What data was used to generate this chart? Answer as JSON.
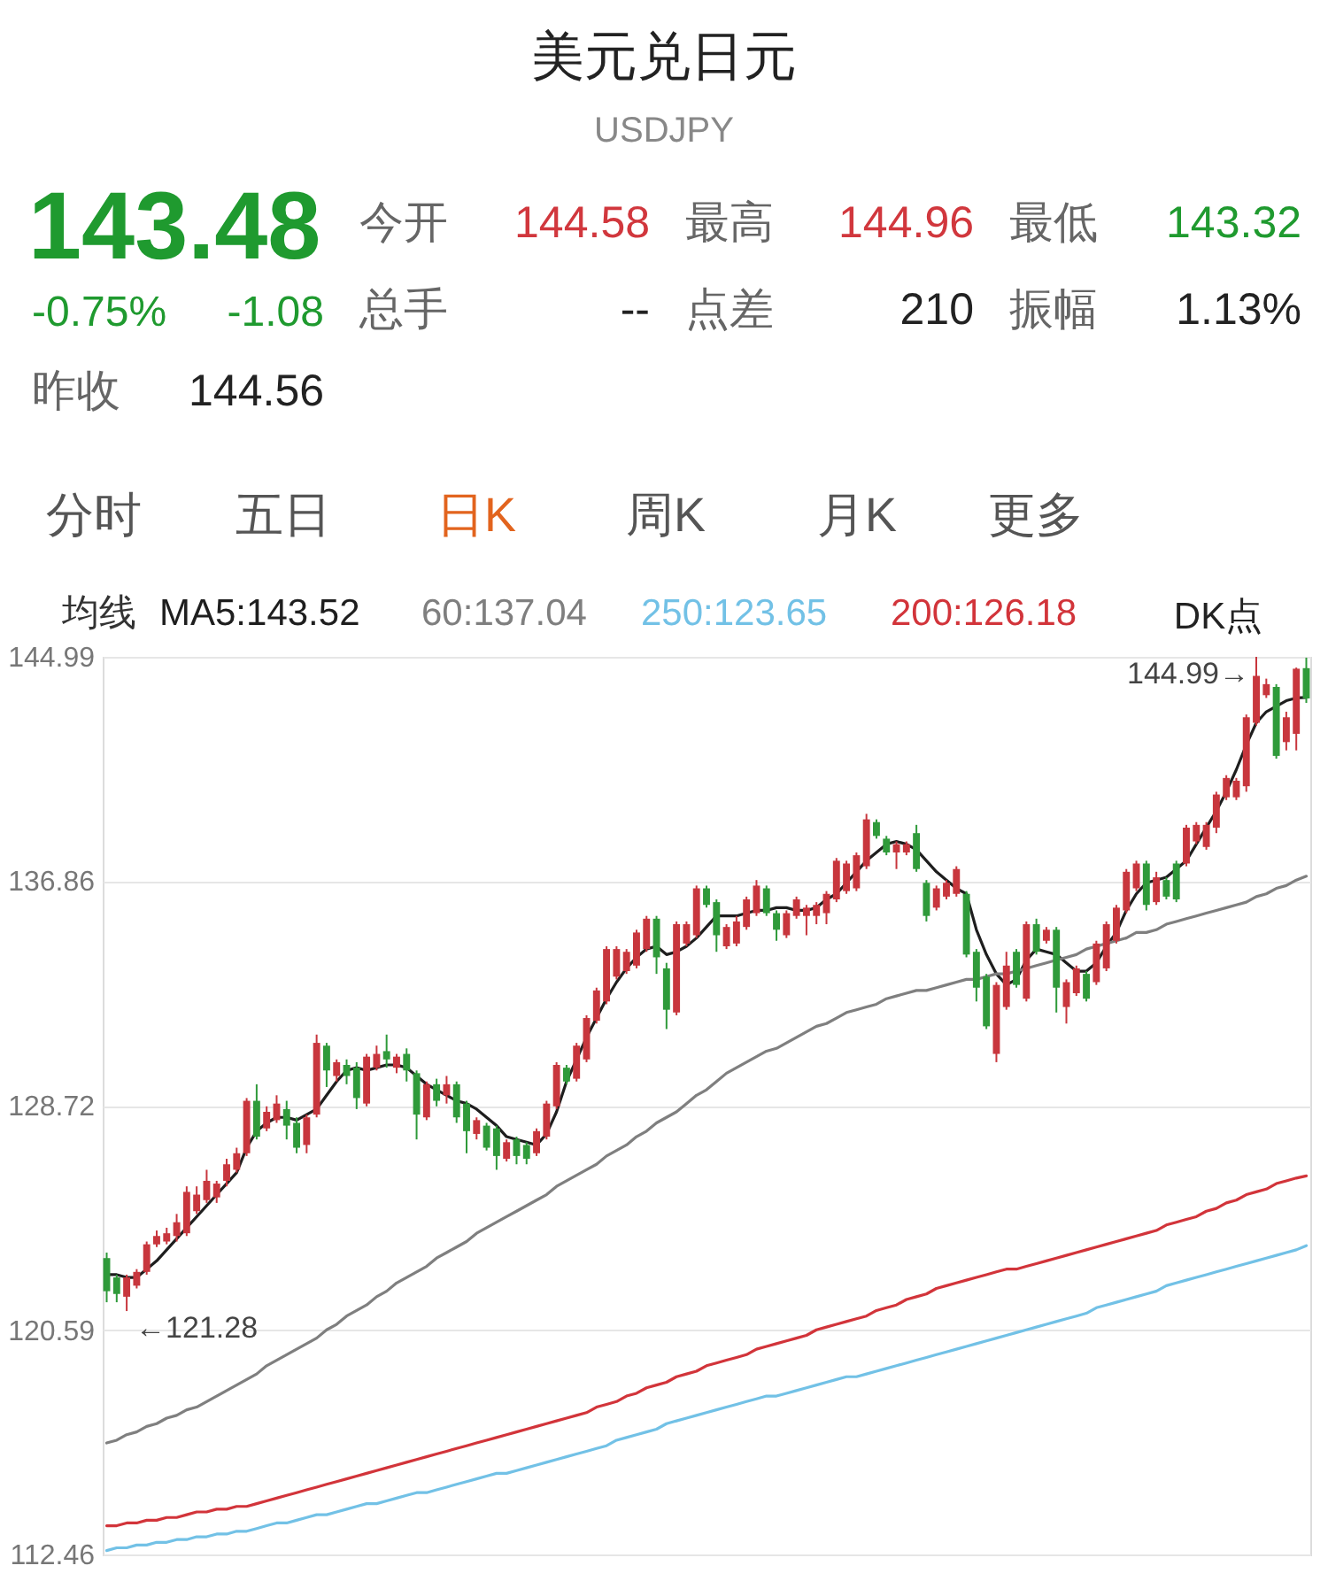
{
  "chart_data": [
    {
      "type": "other",
      "title": "美元兑日元",
      "subtitle": "USDJPY",
      "annotations": [
        "143.48",
        "今开",
        "144.58",
        "最高",
        "144.96",
        "最低",
        "143.32",
        "-0.75%",
        "-1.08",
        "总手",
        "--",
        "点差",
        "210",
        "振幅",
        "1.13%",
        "昨收",
        "144.56",
        "分时",
        "五日",
        "日K",
        "周K",
        "月K",
        "更多"
      ]
    },
    {
      "type": "candlestick",
      "categories": [
        null,
        null,
        null,
        null,
        null,
        null,
        null,
        null,
        null,
        null,
        null,
        null,
        null,
        null,
        null,
        null,
        null,
        null,
        null,
        null,
        null,
        null,
        null,
        null,
        null,
        null,
        null,
        null,
        null,
        null,
        null,
        null,
        null,
        null,
        null,
        null,
        null,
        null,
        null,
        null,
        null,
        null,
        null,
        null,
        null,
        null,
        null,
        null,
        null,
        null,
        null,
        null,
        null,
        null,
        null,
        null,
        null,
        null,
        null,
        null,
        null,
        null,
        null,
        null,
        null,
        null,
        null,
        null,
        null,
        null,
        null,
        null,
        null,
        null,
        null,
        null,
        null,
        null,
        null,
        null,
        null,
        null,
        null,
        null,
        null,
        null,
        null,
        null,
        null,
        null,
        null,
        null,
        null,
        null,
        null,
        null,
        null,
        null,
        null,
        null,
        null,
        null,
        null,
        null,
        null,
        null,
        null,
        null,
        null,
        null,
        null,
        null,
        null,
        null,
        null,
        null,
        null,
        null,
        null,
        null,
        null
      ],
      "ohlc": [
        [
          123.2,
          123.4,
          121.6,
          122.0
        ],
        [
          122.5,
          122.6,
          121.6,
          121.9
        ],
        [
          121.8,
          122.6,
          121.28,
          122.5
        ],
        [
          122.2,
          122.8,
          122.1,
          122.7
        ],
        [
          122.7,
          123.8,
          122.6,
          123.7
        ],
        [
          123.7,
          124.2,
          123.6,
          124.0
        ],
        [
          123.8,
          124.3,
          123.7,
          124.1
        ],
        [
          124.0,
          124.8,
          123.8,
          124.5
        ],
        [
          124.1,
          125.8,
          124.0,
          125.6
        ],
        [
          124.9,
          125.8,
          124.8,
          125.5
        ],
        [
          125.3,
          126.4,
          125.2,
          126.0
        ],
        [
          125.4,
          126.0,
          125.2,
          125.9
        ],
        [
          126.0,
          126.8,
          125.8,
          126.6
        ],
        [
          126.4,
          127.2,
          126.3,
          127.0
        ],
        [
          127.0,
          129.0,
          126.9,
          128.9
        ],
        [
          128.9,
          129.5,
          127.5,
          127.6
        ],
        [
          127.9,
          128.7,
          127.8,
          128.5
        ],
        [
          128.2,
          129.1,
          128.1,
          128.8
        ],
        [
          128.6,
          128.9,
          127.5,
          128.0
        ],
        [
          128.1,
          128.3,
          127.0,
          127.2
        ],
        [
          127.3,
          128.4,
          127.0,
          128.3
        ],
        [
          128.4,
          131.3,
          128.3,
          131.0
        ],
        [
          130.9,
          131.0,
          129.4,
          130.0
        ],
        [
          129.8,
          130.4,
          129.6,
          130.3
        ],
        [
          130.2,
          130.4,
          129.5,
          129.8
        ],
        [
          130.1,
          130.3,
          128.6,
          129.0
        ],
        [
          128.8,
          130.6,
          128.7,
          130.5
        ],
        [
          130.1,
          130.9,
          130.0,
          130.6
        ],
        [
          130.7,
          131.3,
          130.1,
          130.4
        ],
        [
          130.1,
          130.6,
          129.9,
          130.5
        ],
        [
          130.6,
          130.8,
          129.6,
          130.0
        ],
        [
          129.9,
          130.0,
          127.5,
          128.4
        ],
        [
          128.3,
          129.6,
          128.2,
          129.5
        ],
        [
          129.5,
          129.7,
          128.7,
          128.9
        ],
        [
          129.1,
          129.8,
          128.8,
          129.5
        ],
        [
          129.5,
          129.6,
          128.1,
          128.3
        ],
        [
          128.8,
          128.9,
          127.0,
          127.8
        ],
        [
          127.7,
          128.3,
          127.5,
          128.2
        ],
        [
          128.0,
          128.1,
          127.1,
          127.2
        ],
        [
          127.9,
          128.0,
          126.4,
          126.9
        ],
        [
          126.8,
          127.5,
          126.7,
          127.4
        ],
        [
          127.5,
          127.6,
          126.6,
          126.9
        ],
        [
          127.3,
          127.4,
          126.6,
          126.8
        ],
        [
          127.0,
          127.9,
          126.9,
          127.8
        ],
        [
          127.6,
          128.9,
          127.5,
          128.8
        ],
        [
          128.7,
          130.3,
          128.6,
          130.2
        ],
        [
          130.1,
          130.2,
          129.5,
          129.6
        ],
        [
          129.7,
          131.0,
          129.6,
          130.9
        ],
        [
          130.4,
          132.0,
          130.3,
          131.9
        ],
        [
          131.8,
          133.0,
          131.7,
          132.9
        ],
        [
          132.5,
          134.5,
          132.4,
          134.4
        ],
        [
          133.4,
          134.5,
          133.3,
          134.4
        ],
        [
          133.6,
          134.4,
          133.5,
          134.3
        ],
        [
          133.8,
          135.1,
          133.7,
          135.0
        ],
        [
          134.4,
          135.6,
          134.3,
          135.5
        ],
        [
          135.5,
          135.6,
          133.5,
          134.1
        ],
        [
          133.7,
          133.9,
          131.5,
          132.2
        ],
        [
          132.1,
          135.4,
          132.0,
          135.3
        ],
        [
          134.6,
          135.4,
          134.5,
          135.3
        ],
        [
          134.9,
          136.7,
          134.8,
          136.6
        ],
        [
          136.6,
          136.7,
          135.9,
          136.0
        ],
        [
          136.1,
          136.2,
          134.3,
          134.9
        ],
        [
          134.5,
          135.3,
          134.4,
          135.2
        ],
        [
          134.6,
          135.6,
          134.5,
          135.4
        ],
        [
          135.2,
          136.3,
          135.1,
          136.2
        ],
        [
          135.7,
          136.9,
          135.6,
          136.7
        ],
        [
          136.6,
          136.7,
          135.6,
          135.7
        ],
        [
          135.7,
          135.8,
          134.7,
          135.1
        ],
        [
          134.9,
          135.8,
          134.8,
          135.7
        ],
        [
          135.6,
          136.3,
          135.5,
          136.2
        ],
        [
          135.6,
          136.0,
          134.9,
          135.9
        ],
        [
          135.6,
          136.1,
          135.3,
          136.0
        ],
        [
          135.7,
          136.5,
          135.3,
          136.4
        ],
        [
          136.2,
          137.7,
          136.1,
          137.6
        ],
        [
          136.5,
          137.6,
          136.4,
          137.5
        ],
        [
          136.6,
          137.9,
          136.5,
          137.8
        ],
        [
          137.4,
          139.3,
          137.3,
          139.1
        ],
        [
          139.0,
          139.1,
          138.4,
          138.5
        ],
        [
          138.4,
          138.5,
          137.8,
          137.9
        ],
        [
          137.9,
          138.3,
          137.3,
          138.2
        ],
        [
          137.9,
          138.3,
          137.8,
          138.2
        ],
        [
          138.6,
          138.9,
          137.2,
          137.3
        ],
        [
          136.8,
          136.9,
          135.4,
          135.6
        ],
        [
          135.9,
          136.7,
          135.8,
          136.6
        ],
        [
          136.3,
          136.9,
          136.2,
          136.8
        ],
        [
          136.4,
          137.4,
          136.3,
          137.3
        ],
        [
          136.4,
          136.5,
          134.1,
          134.2
        ],
        [
          134.3,
          134.4,
          132.5,
          133.0
        ],
        [
          133.4,
          133.5,
          131.5,
          131.6
        ],
        [
          130.6,
          133.2,
          130.3,
          133.1
        ],
        [
          132.3,
          134.3,
          132.2,
          133.8
        ],
        [
          134.3,
          134.4,
          133.0,
          133.1
        ],
        [
          132.6,
          135.4,
          132.5,
          135.3
        ],
        [
          135.3,
          135.5,
          134.2,
          134.3
        ],
        [
          134.7,
          135.2,
          134.6,
          135.1
        ],
        [
          135.1,
          135.2,
          132.1,
          133.0
        ],
        [
          132.3,
          133.3,
          131.7,
          133.2
        ],
        [
          132.8,
          133.8,
          132.7,
          133.7
        ],
        [
          133.5,
          133.6,
          132.5,
          132.6
        ],
        [
          133.2,
          134.7,
          133.1,
          134.6
        ],
        [
          133.7,
          135.4,
          133.6,
          135.3
        ],
        [
          134.7,
          136.0,
          134.6,
          135.9
        ],
        [
          135.8,
          137.3,
          135.7,
          137.2
        ],
        [
          136.6,
          137.6,
          136.5,
          137.5
        ],
        [
          137.5,
          137.6,
          135.8,
          136.0
        ],
        [
          136.1,
          137.2,
          136.0,
          137.0
        ],
        [
          136.9,
          137.0,
          136.2,
          136.3
        ],
        [
          137.5,
          137.6,
          136.1,
          136.2
        ],
        [
          137.5,
          138.9,
          137.4,
          138.8
        ],
        [
          138.3,
          139.0,
          138.2,
          138.9
        ],
        [
          138.1,
          139.0,
          138.0,
          138.9
        ],
        [
          138.8,
          140.1,
          138.6,
          140.0
        ],
        [
          139.9,
          140.7,
          139.8,
          140.6
        ],
        [
          139.9,
          140.6,
          139.8,
          140.5
        ],
        [
          140.3,
          142.9,
          140.1,
          142.8
        ],
        [
          142.6,
          144.99,
          142.5,
          144.3
        ],
        [
          143.6,
          144.2,
          143.5,
          144.0
        ],
        [
          143.9,
          144.0,
          141.3,
          141.4
        ],
        [
          141.9,
          143.0,
          141.6,
          142.8
        ],
        [
          142.2,
          144.6,
          141.6,
          144.56
        ],
        [
          144.58,
          144.96,
          143.32,
          143.48
        ]
      ],
      "colors": [
        "#2f9a3a",
        "#2f9a3a",
        "#c8363d",
        "#c8363d",
        "#c8363d",
        "#c8363d",
        "#c8363d",
        "#c8363d",
        "#c8363d",
        "#c8363d",
        "#c8363d",
        "#c8363d",
        "#c8363d",
        "#c8363d",
        "#c8363d",
        "#2f9a3a",
        "#c8363d",
        "#c8363d",
        "#2f9a3a",
        "#2f9a3a",
        "#c8363d",
        "#c8363d",
        "#2f9a3a",
        "#c8363d",
        "#2f9a3a",
        "#2f9a3a",
        "#c8363d",
        "#c8363d",
        "#2f9a3a",
        "#c8363d",
        "#2f9a3a",
        "#2f9a3a",
        "#c8363d",
        "#2f9a3a",
        "#c8363d",
        "#2f9a3a",
        "#2f9a3a",
        "#c8363d",
        "#2f9a3a",
        "#2f9a3a",
        "#c8363d",
        "#2f9a3a",
        "#2f9a3a",
        "#c8363d",
        "#c8363d",
        "#c8363d",
        "#2f9a3a",
        "#c8363d",
        "#c8363d",
        "#c8363d",
        "#c8363d",
        "#c8363d",
        "#c8363d",
        "#c8363d",
        "#c8363d",
        "#2f9a3a",
        "#2f9a3a",
        "#c8363d",
        "#c8363d",
        "#c8363d",
        "#2f9a3a",
        "#2f9a3a",
        "#c8363d",
        "#c8363d",
        "#c8363d",
        "#c8363d",
        "#2f9a3a",
        "#2f9a3a",
        "#c8363d",
        "#c8363d",
        "#c8363d",
        "#c8363d",
        "#c8363d",
        "#c8363d",
        "#c8363d",
        "#c8363d",
        "#c8363d",
        "#2f9a3a",
        "#2f9a3a",
        "#c8363d",
        "#c8363d",
        "#2f9a3a",
        "#2f9a3a",
        "#c8363d",
        "#c8363d",
        "#c8363d",
        "#2f9a3a",
        "#2f9a3a",
        "#2f9a3a",
        "#c8363d",
        "#c8363d",
        "#2f9a3a",
        "#c8363d",
        "#2f9a3a",
        "#c8363d",
        "#2f9a3a",
        "#c8363d",
        "#c8363d",
        "#2f9a3a",
        "#c8363d",
        "#c8363d",
        "#c8363d",
        "#c8363d",
        "#c8363d",
        "#2f9a3a",
        "#c8363d",
        "#2f9a3a",
        "#2f9a3a",
        "#c8363d",
        "#c8363d",
        "#c8363d",
        "#c8363d",
        "#c8363d",
        "#c8363d",
        "#c8363d",
        "#c8363d",
        "#c8363d",
        "#2f9a3a",
        "#c8363d",
        "#c8363d",
        "#2f9a3a"
      ],
      "legend_title": "均线",
      "series": [
        {
          "name": "MA5:143.52",
          "type": "line",
          "color": "#1e1e1e",
          "values": [
            122.6,
            122.6,
            122.5,
            122.5,
            122.8,
            123.1,
            123.5,
            123.9,
            124.3,
            124.7,
            125.1,
            125.5,
            125.9,
            126.3,
            127.2,
            127.8,
            128.1,
            128.3,
            128.3,
            128.2,
            128.4,
            128.6,
            129.1,
            129.6,
            130.0,
            130.1,
            130.0,
            130.1,
            130.2,
            130.2,
            130.1,
            129.8,
            129.5,
            129.3,
            129.1,
            128.9,
            128.8,
            128.6,
            128.3,
            128.0,
            127.6,
            127.5,
            127.4,
            127.3,
            127.7,
            128.5,
            129.6,
            130.4,
            131.2,
            131.9,
            132.6,
            133.2,
            133.7,
            134.1,
            134.4,
            134.5,
            134.2,
            134.3,
            134.5,
            134.8,
            135.2,
            135.6,
            135.6,
            135.6,
            135.7,
            135.8,
            135.8,
            135.9,
            135.9,
            135.8,
            135.8,
            135.9,
            136.2,
            136.4,
            136.8,
            137.2,
            137.6,
            137.9,
            138.2,
            138.3,
            138.2,
            138.0,
            137.6,
            137.2,
            136.9,
            136.6,
            136.4,
            135.1,
            134.2,
            133.5,
            133.1,
            133.3,
            134.0,
            134.4,
            134.3,
            134.2,
            133.9,
            133.6,
            133.6,
            133.9,
            134.5,
            135.0,
            135.8,
            136.4,
            136.8,
            136.9,
            137.0,
            137.3,
            137.6,
            138.2,
            138.8,
            139.4,
            140.1,
            140.9,
            141.8,
            142.6,
            143.0,
            143.2,
            143.4,
            143.5,
            143.52
          ]
        },
        {
          "name": "60:137.04",
          "type": "line",
          "color": "#7f7f7f",
          "values": [
            116.5,
            116.6,
            116.8,
            116.9,
            117.1,
            117.2,
            117.4,
            117.5,
            117.7,
            117.8,
            118.0,
            118.2,
            118.4,
            118.6,
            118.8,
            119.0,
            119.3,
            119.5,
            119.7,
            119.9,
            120.1,
            120.3,
            120.6,
            120.8,
            121.1,
            121.3,
            121.5,
            121.8,
            122.0,
            122.3,
            122.5,
            122.7,
            122.9,
            123.2,
            123.4,
            123.6,
            123.8,
            124.1,
            124.3,
            124.5,
            124.7,
            124.9,
            125.1,
            125.3,
            125.5,
            125.8,
            126.0,
            126.2,
            126.4,
            126.6,
            126.9,
            127.1,
            127.3,
            127.6,
            127.8,
            128.1,
            128.3,
            128.5,
            128.8,
            129.1,
            129.3,
            129.6,
            129.9,
            130.1,
            130.3,
            130.5,
            130.7,
            130.8,
            131.0,
            131.2,
            131.4,
            131.6,
            131.7,
            131.9,
            132.1,
            132.2,
            132.3,
            132.4,
            132.6,
            132.7,
            132.8,
            132.9,
            132.9,
            133.0,
            133.1,
            133.2,
            133.3,
            133.3,
            133.4,
            133.5,
            133.5,
            133.6,
            133.7,
            133.8,
            133.9,
            134.0,
            134.1,
            134.2,
            134.4,
            134.5,
            134.6,
            134.7,
            134.8,
            135.0,
            135.0,
            135.1,
            135.3,
            135.4,
            135.5,
            135.6,
            135.7,
            135.8,
            135.9,
            136.0,
            136.1,
            136.3,
            136.4,
            136.6,
            136.7,
            136.9,
            137.04
          ]
        },
        {
          "name": "250:123.65",
          "type": "line",
          "color": "#72c1e6",
          "values": [
            112.6,
            112.7,
            112.7,
            112.8,
            112.8,
            112.9,
            112.9,
            113.0,
            113.0,
            113.1,
            113.1,
            113.2,
            113.2,
            113.3,
            113.3,
            113.4,
            113.5,
            113.6,
            113.6,
            113.7,
            113.8,
            113.9,
            113.9,
            114.0,
            114.1,
            114.2,
            114.3,
            114.3,
            114.4,
            114.5,
            114.6,
            114.7,
            114.7,
            114.8,
            114.9,
            115.0,
            115.1,
            115.2,
            115.3,
            115.4,
            115.4,
            115.5,
            115.6,
            115.7,
            115.8,
            115.9,
            116.0,
            116.1,
            116.2,
            116.3,
            116.4,
            116.6,
            116.7,
            116.8,
            116.9,
            117.0,
            117.2,
            117.3,
            117.4,
            117.5,
            117.6,
            117.7,
            117.8,
            117.9,
            118.0,
            118.1,
            118.2,
            118.2,
            118.3,
            118.4,
            118.5,
            118.6,
            118.7,
            118.8,
            118.9,
            118.9,
            119.0,
            119.1,
            119.2,
            119.3,
            119.4,
            119.5,
            119.6,
            119.7,
            119.8,
            119.9,
            120.0,
            120.1,
            120.2,
            120.3,
            120.4,
            120.5,
            120.6,
            120.7,
            120.8,
            120.9,
            121.0,
            121.1,
            121.2,
            121.4,
            121.5,
            121.6,
            121.7,
            121.8,
            121.9,
            122.0,
            122.2,
            122.3,
            122.4,
            122.5,
            122.6,
            122.7,
            122.8,
            122.9,
            123.0,
            123.1,
            123.2,
            123.3,
            123.4,
            123.5,
            123.65
          ]
        },
        {
          "name": "200:126.18",
          "type": "line",
          "color": "#d2343a",
          "values": [
            113.5,
            113.5,
            113.6,
            113.6,
            113.7,
            113.7,
            113.8,
            113.8,
            113.9,
            114.0,
            114.0,
            114.1,
            114.1,
            114.2,
            114.2,
            114.3,
            114.4,
            114.5,
            114.6,
            114.7,
            114.8,
            114.9,
            115.0,
            115.1,
            115.2,
            115.3,
            115.4,
            115.5,
            115.6,
            115.7,
            115.8,
            115.9,
            116.0,
            116.1,
            116.2,
            116.3,
            116.4,
            116.5,
            116.6,
            116.7,
            116.8,
            116.9,
            117.0,
            117.1,
            117.2,
            117.3,
            117.4,
            117.5,
            117.6,
            117.8,
            117.9,
            118.0,
            118.2,
            118.3,
            118.5,
            118.6,
            118.7,
            118.9,
            119.0,
            119.1,
            119.3,
            119.4,
            119.5,
            119.6,
            119.7,
            119.9,
            120.0,
            120.1,
            120.2,
            120.3,
            120.4,
            120.6,
            120.7,
            120.8,
            120.9,
            121.0,
            121.1,
            121.3,
            121.4,
            121.5,
            121.7,
            121.8,
            121.9,
            122.1,
            122.2,
            122.3,
            122.4,
            122.5,
            122.6,
            122.7,
            122.8,
            122.8,
            122.9,
            123.0,
            123.1,
            123.2,
            123.3,
            123.4,
            123.5,
            123.6,
            123.7,
            123.8,
            123.9,
            124.0,
            124.1,
            124.2,
            124.4,
            124.5,
            124.6,
            124.7,
            124.9,
            125.0,
            125.2,
            125.3,
            125.5,
            125.6,
            125.7,
            125.9,
            126.0,
            126.1,
            126.18
          ]
        }
      ],
      "ylim": [
        112.46,
        144.99
      ],
      "yticks": [
        112.46,
        120.59,
        128.72,
        136.86,
        144.99
      ],
      "grid": "y",
      "tick_labels": "y",
      "annotations": [
        "144.99→",
        "←121.28",
        "DK点"
      ]
    }
  ]
}
